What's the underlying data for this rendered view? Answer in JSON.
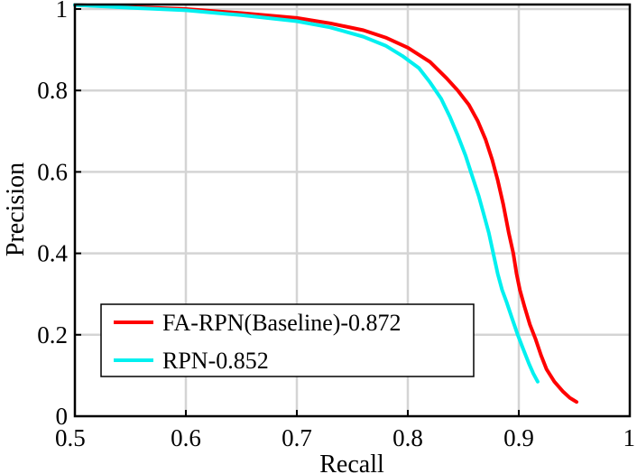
{
  "chart_data": {
    "type": "line",
    "title": "",
    "xlabel": "Recall",
    "ylabel": "Precision",
    "xlim": [
      0.5,
      1
    ],
    "ylim": [
      0,
      1.0
    ],
    "x_ticks": [
      0.5,
      0.6,
      0.7,
      0.8,
      0.9,
      1
    ],
    "y_ticks": [
      0,
      0.2,
      0.4,
      0.6,
      0.8,
      1
    ],
    "x_tick_labels": [
      "0.5",
      "0.6",
      "0.7",
      "0.8",
      "0.9",
      "1"
    ],
    "y_tick_labels": [
      "0",
      "0.2",
      "0.4",
      "0.6",
      "0.8",
      "1"
    ],
    "grid": true,
    "legend_position": "bottom-left",
    "series": [
      {
        "name": "FA-RPN(Baseline)-0.872",
        "color": "#ff0000",
        "points": [
          [
            0.5,
            1.01
          ],
          [
            0.55,
            1.005
          ],
          [
            0.6,
            1.0
          ],
          [
            0.65,
            0.99
          ],
          [
            0.7,
            0.978
          ],
          [
            0.73,
            0.965
          ],
          [
            0.76,
            0.948
          ],
          [
            0.78,
            0.93
          ],
          [
            0.8,
            0.905
          ],
          [
            0.82,
            0.87
          ],
          [
            0.835,
            0.83
          ],
          [
            0.845,
            0.8
          ],
          [
            0.855,
            0.765
          ],
          [
            0.863,
            0.725
          ],
          [
            0.87,
            0.68
          ],
          [
            0.876,
            0.63
          ],
          [
            0.881,
            0.58
          ],
          [
            0.886,
            0.52
          ],
          [
            0.891,
            0.45
          ],
          [
            0.895,
            0.4
          ],
          [
            0.898,
            0.35
          ],
          [
            0.901,
            0.31
          ],
          [
            0.905,
            0.27
          ],
          [
            0.91,
            0.225
          ],
          [
            0.915,
            0.19
          ],
          [
            0.92,
            0.15
          ],
          [
            0.925,
            0.115
          ],
          [
            0.932,
            0.085
          ],
          [
            0.94,
            0.06
          ],
          [
            0.946,
            0.045
          ],
          [
            0.952,
            0.035
          ]
        ]
      },
      {
        "name": "RPN-0.852",
        "color": "#00f0f0",
        "points": [
          [
            0.5,
            1.01
          ],
          [
            0.55,
            1.003
          ],
          [
            0.6,
            0.997
          ],
          [
            0.65,
            0.985
          ],
          [
            0.7,
            0.97
          ],
          [
            0.73,
            0.955
          ],
          [
            0.76,
            0.932
          ],
          [
            0.78,
            0.91
          ],
          [
            0.795,
            0.885
          ],
          [
            0.81,
            0.855
          ],
          [
            0.82,
            0.82
          ],
          [
            0.83,
            0.78
          ],
          [
            0.838,
            0.735
          ],
          [
            0.845,
            0.69
          ],
          [
            0.852,
            0.64
          ],
          [
            0.858,
            0.59
          ],
          [
            0.864,
            0.54
          ],
          [
            0.869,
            0.49
          ],
          [
            0.873,
            0.45
          ],
          [
            0.877,
            0.4
          ],
          [
            0.881,
            0.35
          ],
          [
            0.885,
            0.31
          ],
          [
            0.889,
            0.28
          ],
          [
            0.894,
            0.24
          ],
          [
            0.899,
            0.2
          ],
          [
            0.904,
            0.165
          ],
          [
            0.909,
            0.13
          ],
          [
            0.913,
            0.105
          ],
          [
            0.917,
            0.085
          ]
        ]
      }
    ]
  }
}
